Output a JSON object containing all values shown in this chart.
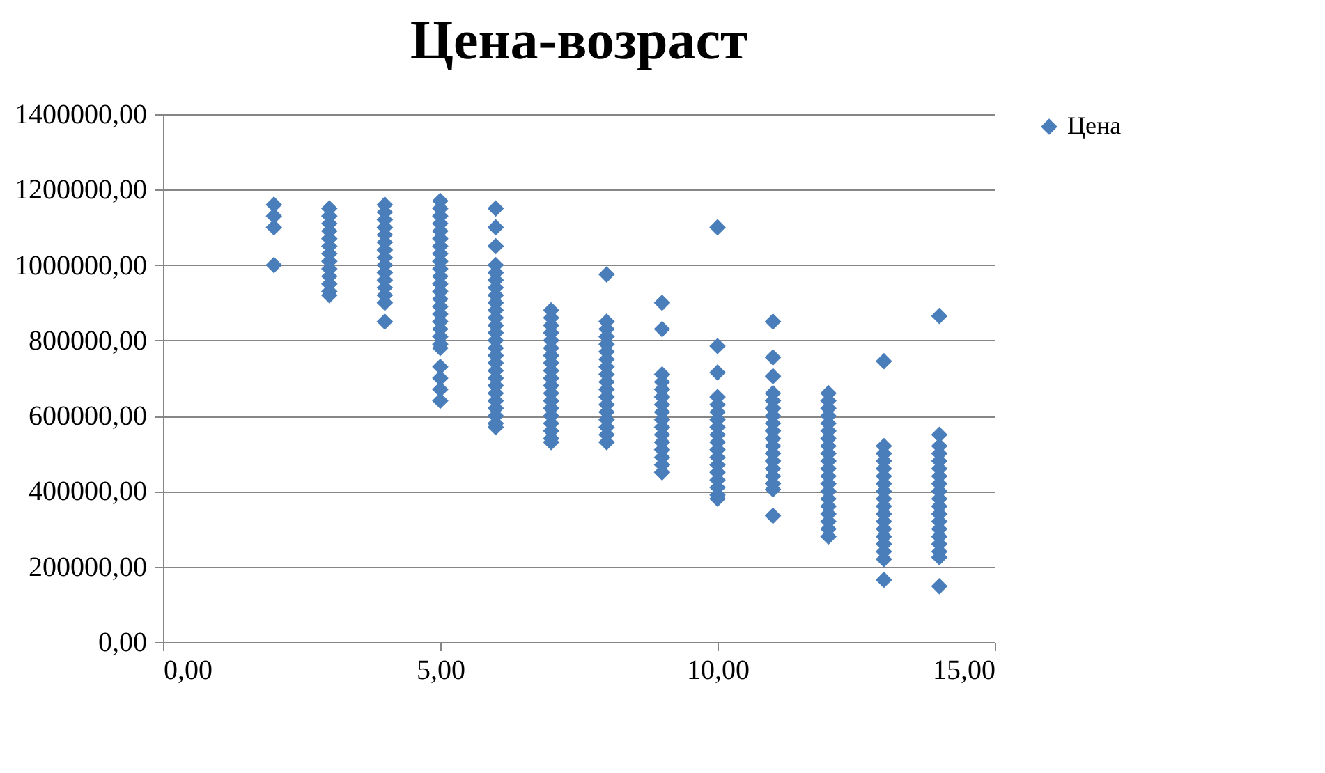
{
  "chart_data": {
    "type": "scatter",
    "title": "Цена-возраст",
    "x": [
      2,
      2,
      2,
      2,
      3,
      3,
      3,
      3,
      3,
      3,
      3,
      3,
      3,
      3,
      3,
      3,
      3,
      4,
      4,
      4,
      4,
      4,
      4,
      4,
      4,
      4,
      4,
      4,
      4,
      4,
      4,
      4,
      5,
      5,
      5,
      5,
      5,
      5,
      5,
      5,
      5,
      5,
      5,
      5,
      5,
      5,
      5,
      5,
      5,
      5,
      5,
      5,
      5,
      5,
      5,
      5,
      5,
      6,
      6,
      6,
      6,
      6,
      6,
      6,
      6,
      6,
      6,
      6,
      6,
      6,
      6,
      6,
      6,
      6,
      6,
      6,
      6,
      6,
      6,
      6,
      6,
      6,
      6,
      7,
      7,
      7,
      7,
      7,
      7,
      7,
      7,
      7,
      7,
      7,
      7,
      7,
      7,
      7,
      7,
      7,
      7,
      7,
      8,
      8,
      8,
      8,
      8,
      8,
      8,
      8,
      8,
      8,
      8,
      8,
      8,
      8,
      8,
      8,
      8,
      8,
      9,
      9,
      9,
      9,
      9,
      9,
      9,
      9,
      9,
      9,
      9,
      9,
      9,
      9,
      9,
      9,
      10,
      10,
      10,
      10,
      10,
      10,
      10,
      10,
      10,
      10,
      10,
      10,
      10,
      10,
      10,
      10,
      10,
      10,
      11,
      11,
      11,
      11,
      11,
      11,
      11,
      11,
      11,
      11,
      11,
      11,
      11,
      11,
      11,
      11,
      11,
      11,
      12,
      12,
      12,
      12,
      12,
      12,
      12,
      12,
      12,
      12,
      12,
      12,
      12,
      12,
      12,
      12,
      12,
      12,
      12,
      12,
      13,
      13,
      13,
      13,
      13,
      13,
      13,
      13,
      13,
      13,
      13,
      13,
      13,
      13,
      13,
      13,
      13,
      13,
      14,
      14,
      14,
      14,
      14,
      14,
      14,
      14,
      14,
      14,
      14,
      14,
      14,
      14,
      14,
      14,
      14,
      14,
      14
    ],
    "series": [
      {
        "name": "Цена",
        "color": "#4a7ebb",
        "values": [
          1160000,
          1130000,
          1100000,
          1000000,
          1150000,
          1130000,
          1110000,
          1090000,
          1070000,
          1050000,
          1030000,
          1010000,
          990000,
          970000,
          950000,
          930000,
          920000,
          1160000,
          1140000,
          1120000,
          1100000,
          1080000,
          1060000,
          1040000,
          1020000,
          1000000,
          980000,
          960000,
          940000,
          920000,
          900000,
          850000,
          1170000,
          1150000,
          1130000,
          1110000,
          1090000,
          1070000,
          1050000,
          1030000,
          1010000,
          990000,
          970000,
          950000,
          930000,
          910000,
          890000,
          870000,
          850000,
          830000,
          810000,
          790000,
          780000,
          730000,
          700000,
          670000,
          640000,
          1150000,
          1100000,
          1050000,
          1000000,
          980000,
          960000,
          940000,
          920000,
          900000,
          880000,
          860000,
          840000,
          820000,
          800000,
          780000,
          760000,
          740000,
          720000,
          700000,
          680000,
          660000,
          640000,
          620000,
          600000,
          580000,
          570000,
          880000,
          860000,
          840000,
          820000,
          800000,
          780000,
          760000,
          740000,
          720000,
          700000,
          680000,
          660000,
          640000,
          620000,
          600000,
          580000,
          560000,
          540000,
          530000,
          975000,
          850000,
          830000,
          810000,
          790000,
          770000,
          750000,
          730000,
          710000,
          690000,
          670000,
          650000,
          630000,
          610000,
          590000,
          570000,
          550000,
          530000,
          900000,
          830000,
          710000,
          690000,
          670000,
          650000,
          630000,
          610000,
          590000,
          570000,
          550000,
          530000,
          510000,
          490000,
          470000,
          450000,
          1100000,
          785000,
          715000,
          650000,
          630000,
          610000,
          590000,
          570000,
          550000,
          530000,
          510000,
          490000,
          470000,
          450000,
          430000,
          410000,
          390000,
          380000,
          850000,
          755000,
          705000,
          660000,
          640000,
          620000,
          600000,
          580000,
          560000,
          540000,
          520000,
          500000,
          480000,
          460000,
          440000,
          420000,
          405000,
          335000,
          660000,
          640000,
          620000,
          600000,
          580000,
          560000,
          540000,
          520000,
          500000,
          480000,
          460000,
          440000,
          420000,
          400000,
          380000,
          360000,
          340000,
          320000,
          300000,
          280000,
          745000,
          520000,
          500000,
          480000,
          460000,
          440000,
          420000,
          400000,
          380000,
          360000,
          340000,
          320000,
          300000,
          280000,
          260000,
          240000,
          220000,
          165000,
          865000,
          550000,
          520000,
          500000,
          480000,
          460000,
          440000,
          420000,
          400000,
          380000,
          360000,
          340000,
          320000,
          300000,
          280000,
          260000,
          240000,
          225000,
          148000
        ]
      }
    ],
    "xlim": [
      0,
      15
    ],
    "xticks": [
      {
        "value": 0,
        "label": "0,00"
      },
      {
        "value": 5,
        "label": "5,00"
      },
      {
        "value": 10,
        "label": "10,00"
      },
      {
        "value": 15,
        "label": "15,00"
      }
    ],
    "ylim": [
      0,
      1400000
    ],
    "yticks": [
      {
        "value": 0,
        "label": "0,00"
      },
      {
        "value": 200000,
        "label": "200000,00"
      },
      {
        "value": 400000,
        "label": "400000,00"
      },
      {
        "value": 600000,
        "label": "600000,00"
      },
      {
        "value": 800000,
        "label": "800000,00"
      },
      {
        "value": 1000000,
        "label": "1000000,00"
      },
      {
        "value": 1200000,
        "label": "1200000,00"
      },
      {
        "value": 1400000,
        "label": "1400000,00"
      }
    ],
    "grid": "y",
    "legend": "right",
    "marker": "diamond"
  }
}
